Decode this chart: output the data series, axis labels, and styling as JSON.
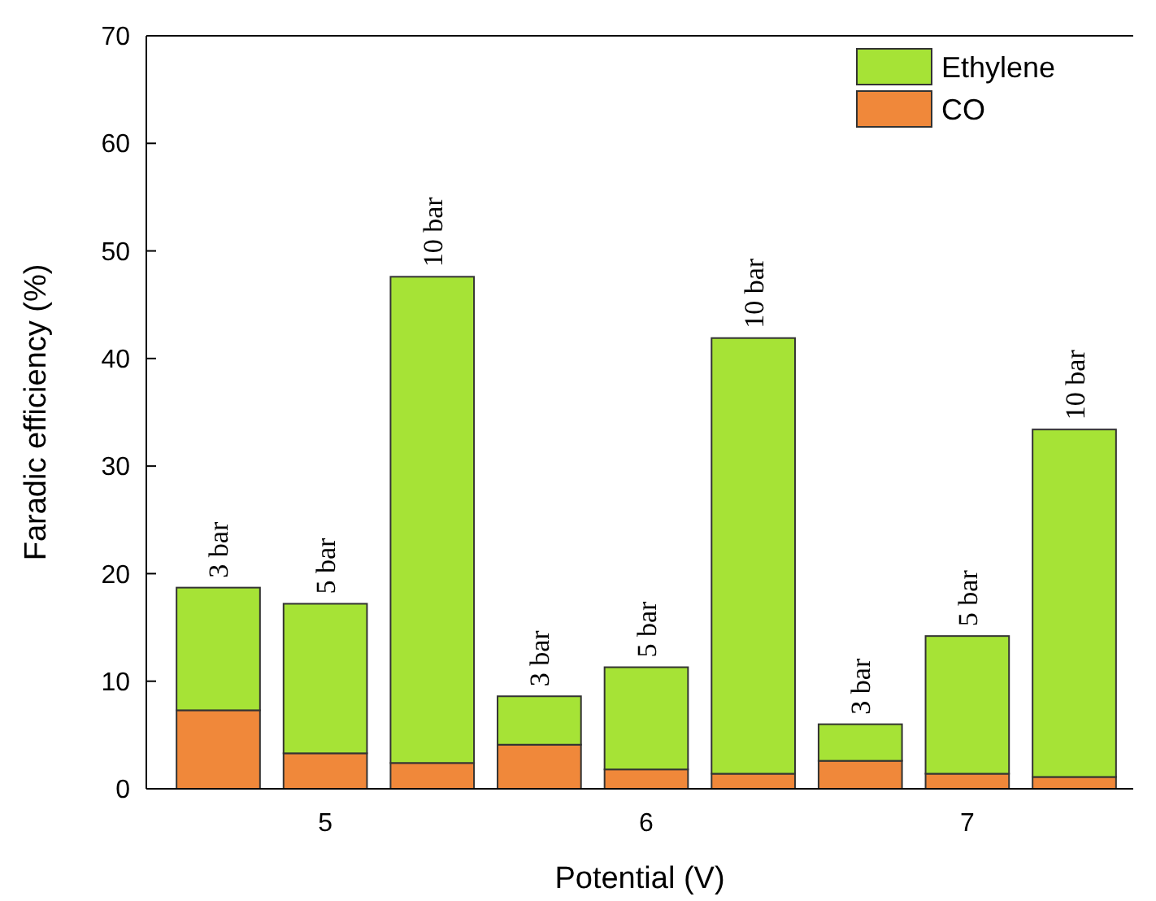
{
  "chart_data": {
    "type": "bar",
    "stacked": true,
    "xlabel": "Potential (V)",
    "ylabel": "Faradic efficiency (%)",
    "categories": [
      null,
      "5",
      null,
      null,
      "6",
      null,
      null,
      "7",
      null
    ],
    "series": [
      {
        "name": "CO",
        "color": "#f0883a",
        "values": [
          7.3,
          3.3,
          2.4,
          4.1,
          1.8,
          1.4,
          2.6,
          1.4,
          1.1
        ]
      },
      {
        "name": "Ethylene",
        "color": "#a6e336",
        "values": [
          11.4,
          13.9,
          45.2,
          4.5,
          9.5,
          40.5,
          3.4,
          12.8,
          32.3
        ]
      }
    ],
    "ylim": [
      0,
      70
    ],
    "yticks": [
      0,
      10,
      20,
      30,
      40,
      50,
      60,
      70
    ],
    "grid": false,
    "legend": "top right",
    "annotations": [
      {
        "text": "3 bar",
        "y": 18.7
      },
      {
        "text": "5 bar",
        "y": 17.2
      },
      {
        "text": "10 bar",
        "y": 47.6
      },
      {
        "text": "3 bar",
        "y": 8.6
      },
      {
        "text": "5 bar",
        "y": 11.3
      },
      {
        "text": "10 bar",
        "y": 41.9
      },
      {
        "text": "3 bar",
        "y": 6.0
      },
      {
        "text": "5 bar",
        "y": 14.2
      },
      {
        "text": "10 bar",
        "y": 33.4
      }
    ]
  }
}
